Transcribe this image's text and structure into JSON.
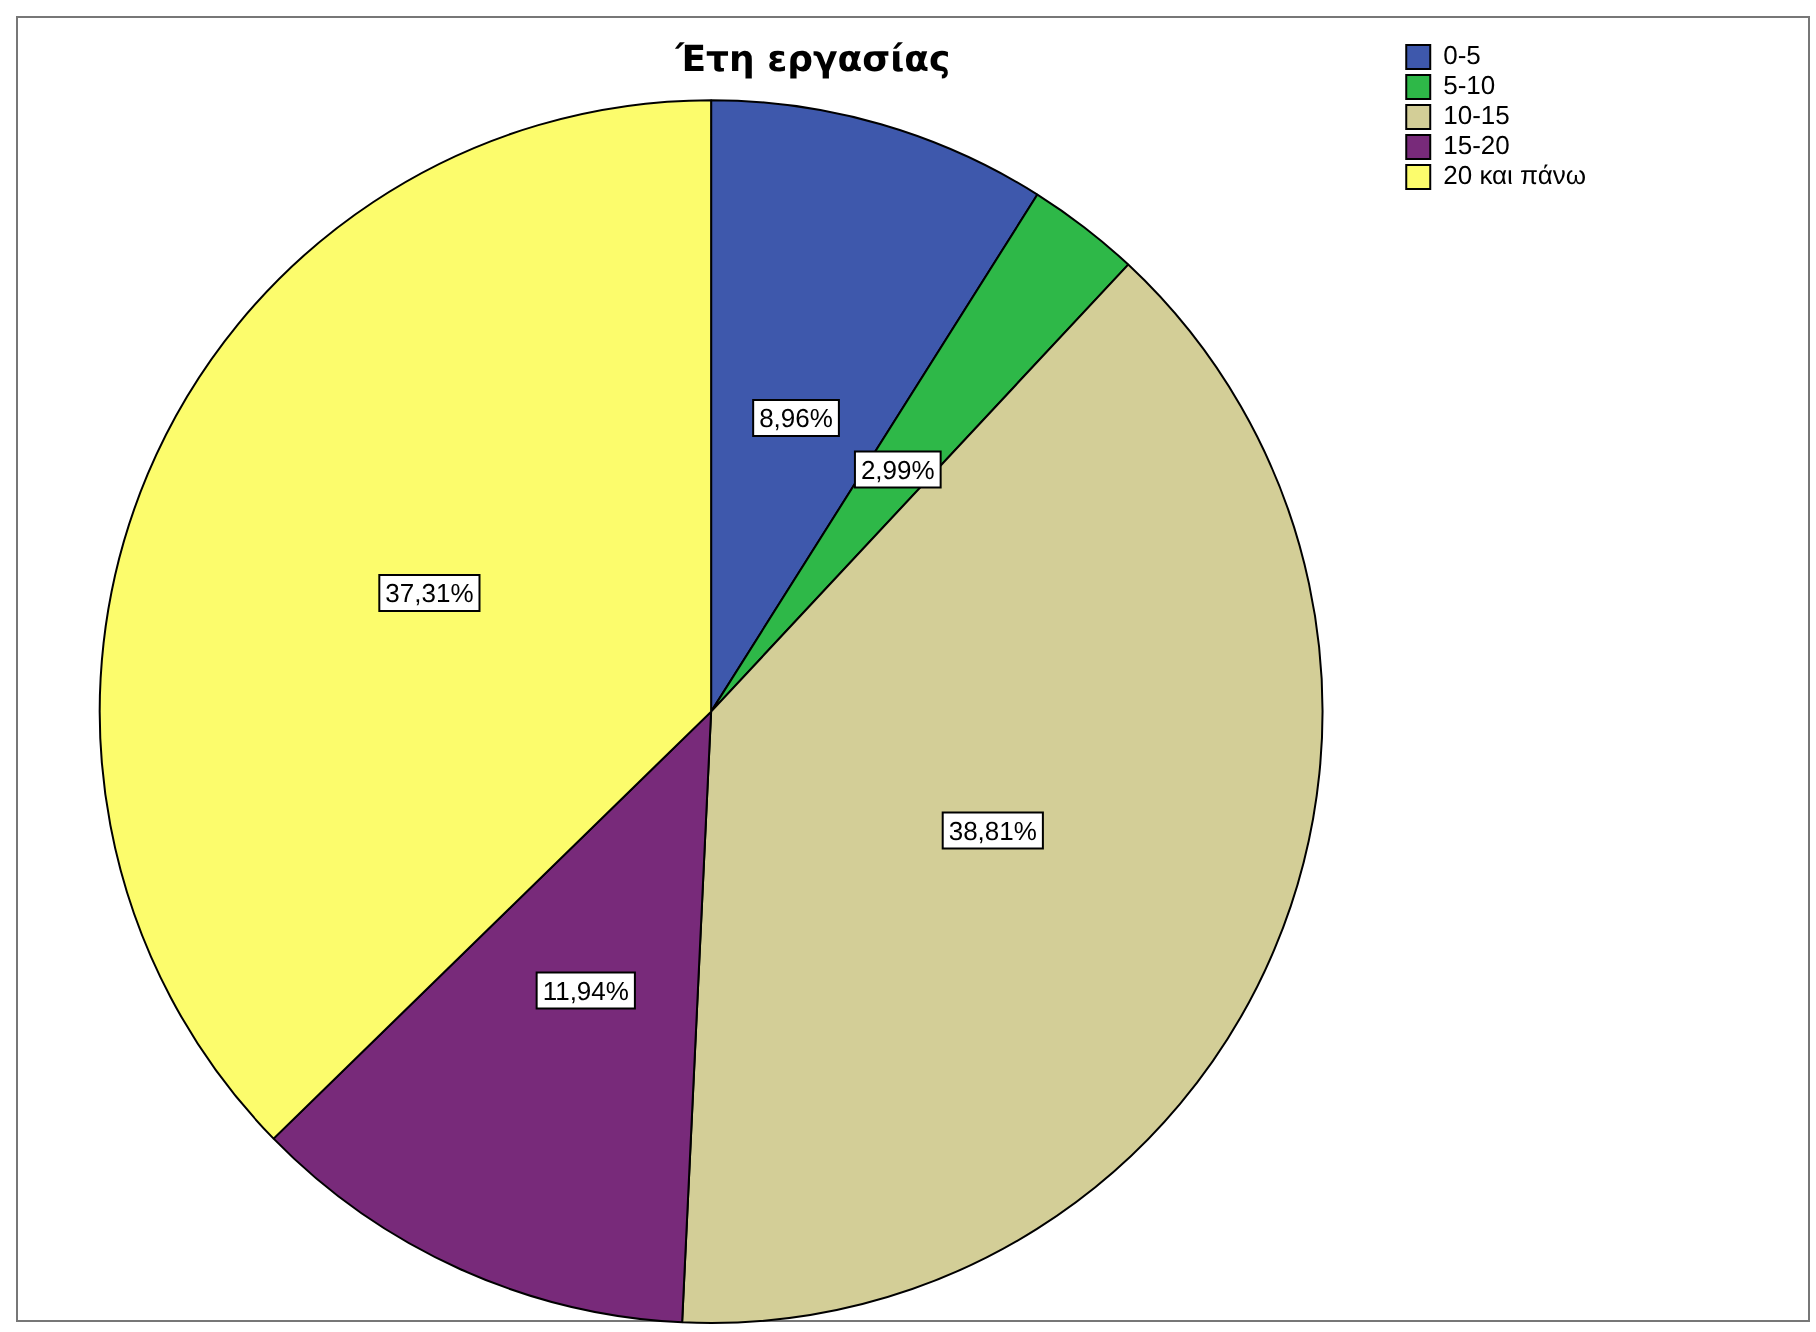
{
  "chart_data": {
    "type": "pie",
    "title": "Έτη εργασίας",
    "categories": [
      "0-5",
      "5-10",
      "10-15",
      "15-20",
      "20 και πάνω"
    ],
    "values": [
      8.96,
      2.99,
      38.81,
      11.94,
      37.31
    ],
    "value_labels": [
      "8,96%",
      "2,99%",
      "38,81%",
      "11,94%",
      "37,31%"
    ],
    "colors": [
      "#3e58ac",
      "#2eb848",
      "#d3ce97",
      "#782a7a",
      "#fcfc6c"
    ],
    "legend": "top right"
  }
}
